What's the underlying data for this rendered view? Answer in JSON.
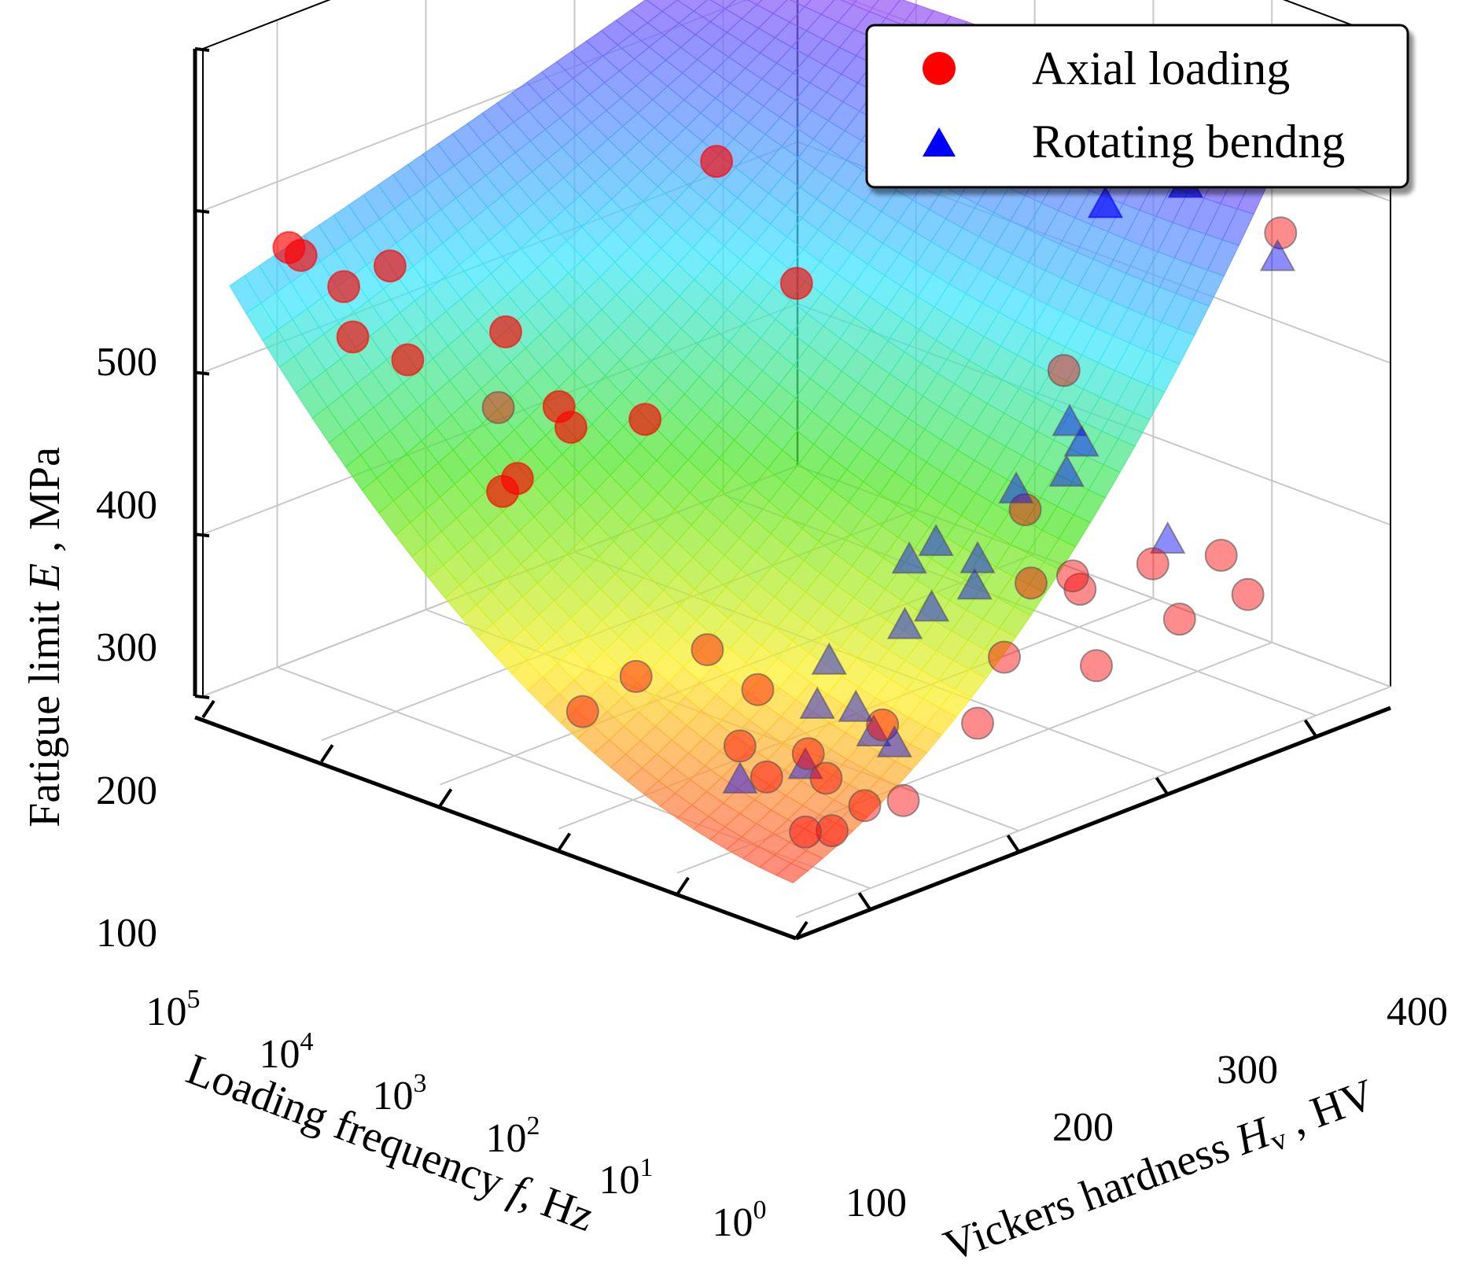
{
  "chart_data": {
    "type": "scatter",
    "title": "",
    "zlabel": {
      "prefix": "Fatigue limit ",
      "var": "E",
      "suffix": " , MPa"
    },
    "xlabel": {
      "prefix": "Loading frequency ",
      "var": "f",
      "suffix": ", Hz"
    },
    "ylabel": {
      "prefix": "Vickers hardness ",
      "var": "H",
      "sub": "v",
      "suffix": " , HV"
    },
    "z_ticks": [
      "500",
      "400",
      "300",
      "200",
      "100"
    ],
    "z_tick_values": [
      500,
      400,
      300,
      200,
      100
    ],
    "x_ticks": [
      {
        "base": "10",
        "exp": "5",
        "value": 5
      },
      {
        "base": "10",
        "exp": "4",
        "value": 4
      },
      {
        "base": "10",
        "exp": "3",
        "value": 3
      },
      {
        "base": "10",
        "exp": "2",
        "value": 2
      },
      {
        "base": "10",
        "exp": "1",
        "value": 1
      },
      {
        "base": "10",
        "exp": "0",
        "value": 0
      }
    ],
    "y_ticks": [
      "100",
      "200",
      "300",
      "400"
    ],
    "y_tick_values": [
      100,
      200,
      300,
      400
    ],
    "xlim_log10_hz": [
      0,
      5
    ],
    "ylim_hv": [
      50,
      450
    ],
    "zlim_mpa": [
      100,
      500
    ],
    "grid": true,
    "legend_position": "top-right",
    "legend": [
      {
        "label": "Axial loading",
        "marker": "circle",
        "color": "#ff0000"
      },
      {
        "label": "Rotating bendng",
        "marker": "triangle",
        "color": "#0000ff"
      }
    ],
    "surface_colormap": "rainbow",
    "series": [
      {
        "name": "Axial loading",
        "marker": "circle",
        "color": "#ff0000",
        "points": [
          [
            4.4,
            60,
            390
          ],
          [
            4.0,
            65,
            375
          ],
          [
            4.8,
            100,
            360
          ],
          [
            4.3,
            120,
            360
          ],
          [
            4.3,
            95,
            325
          ],
          [
            3.9,
            100,
            320
          ],
          [
            3.7,
            150,
            325
          ],
          [
            3.7,
            145,
            280
          ],
          [
            3.1,
            110,
            265
          ],
          [
            3.2,
            108,
            255
          ],
          [
            3.0,
            130,
            305
          ],
          [
            2.9,
            130,
            295
          ],
          [
            2.4,
            140,
            310
          ],
          [
            2.0,
            210,
            380
          ],
          [
            2.8,
            220,
            430
          ],
          [
            1.8,
            280,
            495
          ],
          [
            1.0,
            330,
            475
          ],
          [
            1.0,
            320,
            465
          ],
          [
            0.7,
            350,
            470
          ],
          [
            0.3,
            400,
            390
          ],
          [
            2.3,
            90,
            150
          ],
          [
            2.1,
            110,
            170
          ],
          [
            2.0,
            150,
            175
          ],
          [
            1.7,
            160,
            155
          ],
          [
            1.6,
            140,
            130
          ],
          [
            1.5,
            150,
            110
          ],
          [
            1.4,
            170,
            120
          ],
          [
            1.5,
            190,
            95
          ],
          [
            1.3,
            200,
            80
          ],
          [
            1.1,
            210,
            85
          ],
          [
            1.8,
            200,
            50
          ],
          [
            1.7,
            210,
            50
          ],
          [
            1.4,
            220,
            120
          ],
          [
            1.1,
            260,
            115
          ],
          [
            1.0,
            270,
            155
          ],
          [
            0.9,
            280,
            200
          ],
          [
            0.8,
            300,
            200
          ],
          [
            0.8,
            305,
            190
          ],
          [
            0.5,
            330,
            205
          ],
          [
            0.6,
            300,
            150
          ],
          [
            0.3,
            360,
            205
          ],
          [
            0.2,
            370,
            180
          ],
          [
            0.4,
            340,
            170
          ],
          [
            1.2,
            300,
            230
          ],
          [
            1.5,
            350,
            290
          ]
        ]
      },
      {
        "name": "Rotating bendng",
        "marker": "triangle",
        "color": "#0000ff",
        "points": [
          [
            0.9,
            330,
            415
          ],
          [
            0.6,
            350,
            440
          ],
          [
            0.6,
            360,
            425
          ],
          [
            0.5,
            355,
            475
          ],
          [
            0.2,
            390,
            380
          ],
          [
            0.7,
            290,
            300
          ],
          [
            0.6,
            290,
            290
          ],
          [
            0.6,
            280,
            275
          ],
          [
            0.9,
            270,
            260
          ],
          [
            1.2,
            240,
            230
          ],
          [
            1.3,
            230,
            220
          ],
          [
            1.0,
            250,
            205
          ],
          [
            1.1,
            260,
            215
          ],
          [
            1.3,
            245,
            185
          ],
          [
            1.4,
            235,
            175
          ],
          [
            1.6,
            200,
            160
          ],
          [
            1.7,
            200,
            130
          ],
          [
            1.5,
            210,
            130
          ],
          [
            1.3,
            220,
            110
          ],
          [
            1.6,
            230,
            105
          ],
          [
            1.8,
            200,
            90
          ],
          [
            0.5,
            340,
            215
          ],
          [
            2.1,
            180,
            80
          ]
        ]
      }
    ]
  }
}
